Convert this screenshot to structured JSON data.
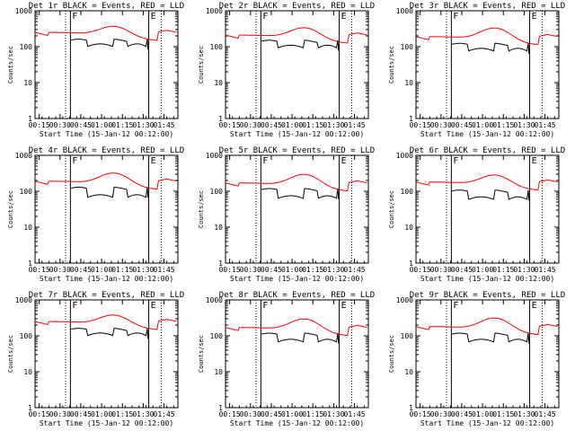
{
  "chart_data": {
    "type": "line",
    "panels": [
      {
        "title": "Det 1r BLACK = Events, RED = LLD",
        "black_base": 150,
        "black_seg": 120,
        "red_base": 250,
        "red_peak": 420
      },
      {
        "title": "Det 2r BLACK = Events, RED = LLD",
        "black_base": 140,
        "black_seg": 110,
        "red_base": 210,
        "red_peak": 380
      },
      {
        "title": "Det 3r BLACK = Events, RED = LLD",
        "black_base": 115,
        "black_seg": 90,
        "red_base": 190,
        "red_peak": 370
      },
      {
        "title": "Det 4r BLACK = Events, RED = LLD",
        "black_base": 120,
        "black_seg": 80,
        "red_base": 190,
        "red_peak": 360
      },
      {
        "title": "Det 5r BLACK = Events, RED = LLD",
        "black_base": 110,
        "black_seg": 75,
        "red_base": 170,
        "red_peak": 330
      },
      {
        "title": "Det 6r BLACK = Events, RED = LLD",
        "black_base": 100,
        "black_seg": 70,
        "red_base": 180,
        "red_peak": 320
      },
      {
        "title": "Det 7r BLACK = Events, RED = LLD",
        "black_base": 150,
        "black_seg": 120,
        "red_base": 250,
        "red_peak": 430
      },
      {
        "title": "Det 8r BLACK = Events, RED = LLD",
        "black_base": 110,
        "black_seg": 80,
        "red_base": 170,
        "red_peak": 330
      },
      {
        "title": "Det 9r BLACK = Events, RED = LLD",
        "black_base": 110,
        "black_seg": 80,
        "red_base": 180,
        "red_peak": 350
      }
    ],
    "xlabel": "Start Time (15-Jan-12 00:12:00)",
    "ylabel": "Counts/sec",
    "x_tick_labels": [
      "00:15",
      "00:30",
      "00:45",
      "01:00",
      "01:15",
      "01:30",
      "01:45"
    ],
    "x_ticks_min": [
      3,
      18,
      33,
      48,
      63,
      78,
      93
    ],
    "xlim_min": [
      0,
      103
    ],
    "y_tick_labels": [
      "1",
      "10",
      "100",
      "1000"
    ],
    "ylim": [
      1,
      1000
    ],
    "yscale": "log",
    "markers": [
      {
        "label": "F",
        "x_min": 25.5,
        "style": "solid"
      },
      {
        "label": "E",
        "x_min": 82,
        "style": "solid"
      }
    ],
    "dotted_lines_min": [
      22,
      91
    ],
    "event_gap_min": [
      25,
      82
    ],
    "event_dips_min": [
      [
        38,
        56
      ],
      [
        67,
        80
      ]
    ],
    "lld_peak_min": 57,
    "series": [
      {
        "name": "Events",
        "color": "#000000"
      },
      {
        "name": "LLD",
        "color": "#ff0000"
      }
    ]
  }
}
